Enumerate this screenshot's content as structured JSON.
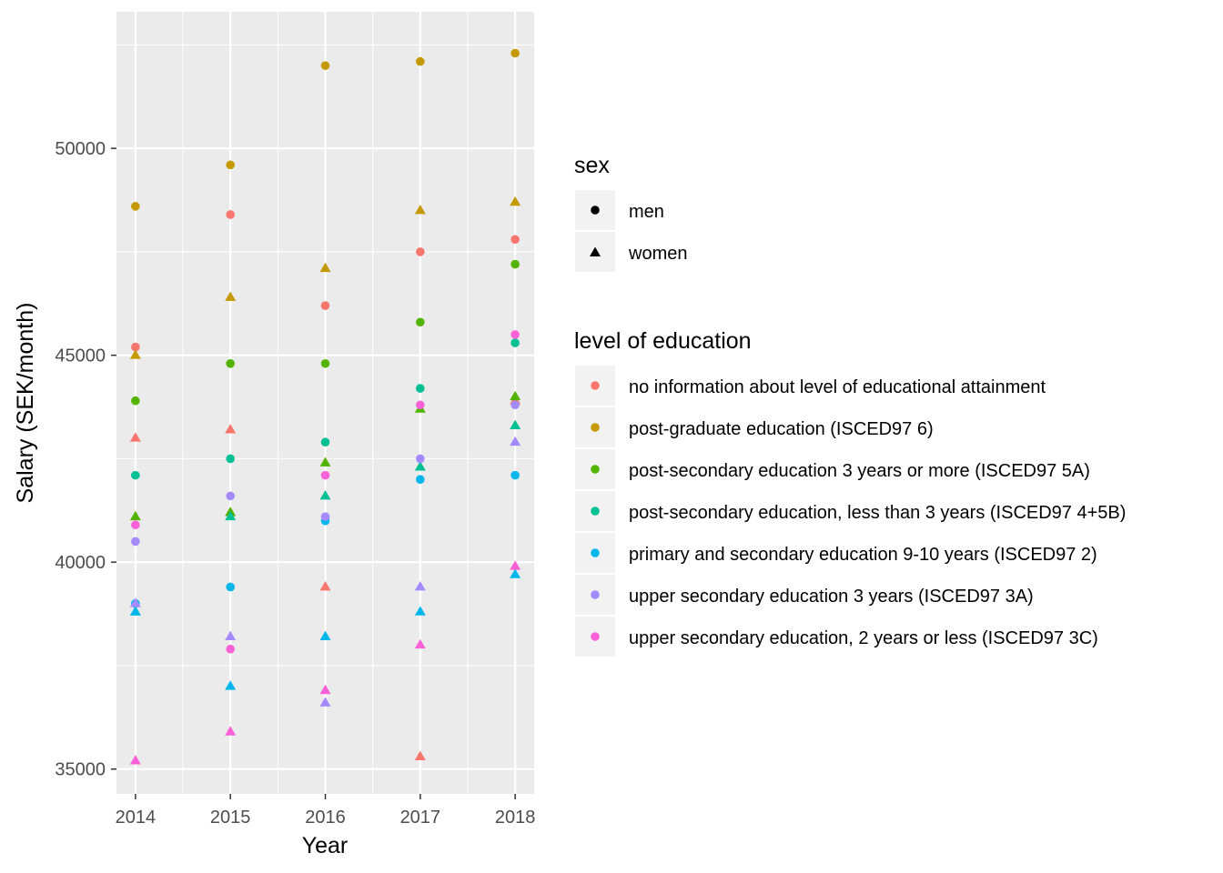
{
  "chart_data": {
    "type": "scatter",
    "title": "",
    "xlabel": "Year",
    "ylabel": "Salary (SEK/month)",
    "x_ticks": [
      "2014",
      "2015",
      "2016",
      "2017",
      "2018"
    ],
    "y_ticks": [
      "35000",
      "40000",
      "45000",
      "50000"
    ],
    "xlim": [
      2013.8,
      2018.2
    ],
    "ylim": [
      34400,
      53300
    ],
    "grid": true,
    "legend_position": "right",
    "shape_legend": {
      "title": "sex",
      "entries": [
        {
          "name": "men",
          "shape": "circle"
        },
        {
          "name": "women",
          "shape": "triangle"
        }
      ]
    },
    "color_legend": {
      "title": "level of education",
      "entries": [
        {
          "name": "no information about level of educational attainment",
          "color": "#F8766D"
        },
        {
          "name": "post-graduate education (ISCED97 6)",
          "color": "#C49A00"
        },
        {
          "name": "post-secondary education 3 years or more (ISCED97 5A)",
          "color": "#53B400"
        },
        {
          "name": "post-secondary education, less than 3 years (ISCED97 4+5B)",
          "color": "#00C094"
        },
        {
          "name": "primary and secondary education 9-10 years (ISCED97 2)",
          "color": "#00B6EB"
        },
        {
          "name": "upper secondary education 3 years (ISCED97 3A)",
          "color": "#A58AFF"
        },
        {
          "name": "upper secondary education, 2 years or less (ISCED97 3C)",
          "color": "#FB61D7"
        }
      ]
    },
    "x": [
      2014,
      2015,
      2016,
      2017,
      2018
    ],
    "series": [
      {
        "education": 0,
        "sex": "men",
        "values": [
          45200,
          48400,
          46200,
          47500,
          47800
        ]
      },
      {
        "education": 0,
        "sex": "women",
        "values": [
          43000,
          43200,
          39400,
          35300,
          43900
        ]
      },
      {
        "education": 1,
        "sex": "men",
        "values": [
          48600,
          49600,
          52000,
          52100,
          52300
        ]
      },
      {
        "education": 1,
        "sex": "women",
        "values": [
          45000,
          46400,
          47100,
          48500,
          48700
        ]
      },
      {
        "education": 2,
        "sex": "men",
        "values": [
          43900,
          44800,
          44800,
          45800,
          47200
        ]
      },
      {
        "education": 2,
        "sex": "women",
        "values": [
          41100,
          41200,
          42400,
          43700,
          44000
        ]
      },
      {
        "education": 3,
        "sex": "men",
        "values": [
          42100,
          42500,
          42900,
          44200,
          45300
        ]
      },
      {
        "education": 3,
        "sex": "women",
        "values": [
          38800,
          41100,
          41600,
          42300,
          43300
        ]
      },
      {
        "education": 4,
        "sex": "men",
        "values": [
          39000,
          39400,
          41000,
          42000,
          42100
        ]
      },
      {
        "education": 4,
        "sex": "women",
        "values": [
          38800,
          37000,
          38200,
          38800,
          39700
        ]
      },
      {
        "education": 5,
        "sex": "men",
        "values": [
          40500,
          41600,
          41100,
          42500,
          43800
        ]
      },
      {
        "education": 5,
        "sex": "women",
        "values": [
          39000,
          38200,
          36600,
          39400,
          42900
        ]
      },
      {
        "education": 6,
        "sex": "men",
        "values": [
          40900,
          37900,
          42100,
          43800,
          45500
        ]
      },
      {
        "education": 6,
        "sex": "women",
        "values": [
          35200,
          35900,
          36900,
          38000,
          39900
        ]
      }
    ]
  }
}
